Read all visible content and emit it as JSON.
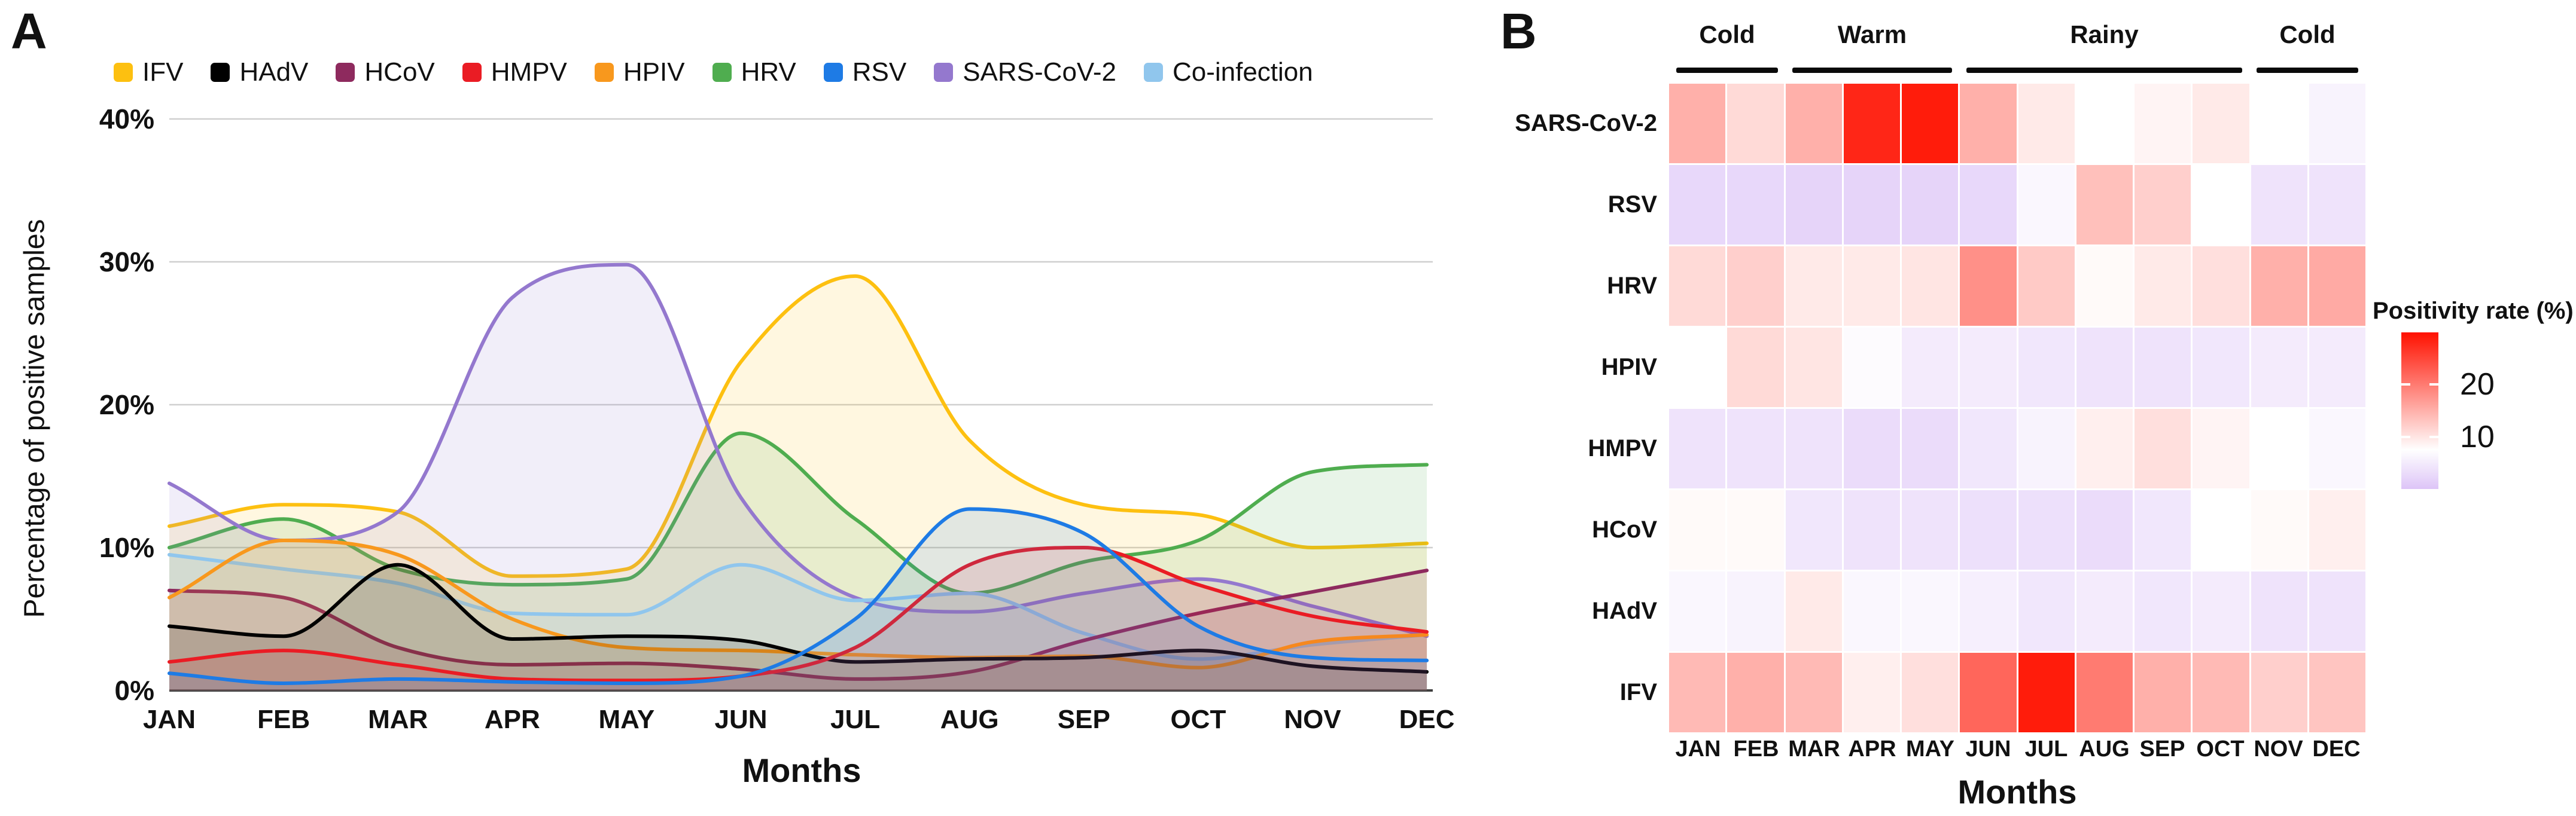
{
  "figure": {
    "panel_a": {
      "label": "A",
      "y_axis_title": "Percentage of positive samples",
      "x_axis_title": "Months"
    },
    "panel_b": {
      "label": "B",
      "x_axis_title": "Months",
      "legend_title": "Positivity rate (%)"
    }
  },
  "chart_data": [
    {
      "type": "area",
      "panel": "A",
      "xlabel": "Months",
      "ylabel": "Percentage of positive samples",
      "x": [
        "JAN",
        "FEB",
        "MAR",
        "APR",
        "MAY",
        "JUN",
        "JUL",
        "AUG",
        "SEP",
        "OCT",
        "NOV",
        "DEC"
      ],
      "ylim": [
        0,
        40
      ],
      "y_tick_labels": [
        "0%",
        "10%",
        "20%",
        "30%",
        "40%"
      ],
      "grid": "horizontal",
      "smoothing": "spline",
      "area_fill_opacity": 0.13,
      "series": [
        {
          "name": "IFV",
          "color": "#FDC010",
          "values": [
            11.5,
            13,
            12.5,
            8,
            8.5,
            23,
            29,
            17.5,
            13,
            12.3,
            10,
            10.3
          ]
        },
        {
          "name": "HAdV",
          "color": "#000000",
          "values": [
            4.5,
            3.8,
            8.8,
            3.6,
            3.8,
            3.5,
            2,
            2.2,
            2.3,
            2.8,
            1.7,
            1.3
          ]
        },
        {
          "name": "HCoV",
          "color": "#8E2A5E",
          "values": [
            7,
            6.5,
            3,
            1.8,
            1.9,
            1.5,
            0.8,
            1.3,
            3.5,
            5.4,
            6.9,
            8.4
          ]
        },
        {
          "name": "HMPV",
          "color": "#EA1C24",
          "values": [
            2,
            2.8,
            1.8,
            0.8,
            0.7,
            1,
            3,
            8.8,
            10,
            7.4,
            5.2,
            4.1
          ]
        },
        {
          "name": "HPIV",
          "color": "#F8981D",
          "values": [
            6.5,
            10.5,
            9.5,
            5,
            3,
            2.8,
            2.5,
            2.3,
            2.4,
            1.6,
            3.4,
            3.9
          ]
        },
        {
          "name": "HRV",
          "color": "#4FAD4F",
          "values": [
            10,
            12,
            8.5,
            7.4,
            7.8,
            18,
            12,
            6.8,
            9,
            10.5,
            15.3,
            15.8
          ]
        },
        {
          "name": "RSV",
          "color": "#1E7BE5",
          "values": [
            1.2,
            0.5,
            0.8,
            0.6,
            0.5,
            1,
            5,
            12.7,
            11,
            4.5,
            2.3,
            2.1
          ]
        },
        {
          "name": "SARS-CoV-2",
          "color": "#9478CE",
          "values": [
            14.5,
            10.5,
            12.5,
            27.5,
            29.8,
            13.5,
            6.5,
            5.5,
            6.8,
            7.8,
            5.9,
            3.8
          ]
        },
        {
          "name": "Co-infection",
          "color": "#90C6ED",
          "values": [
            9.5,
            8.5,
            7.5,
            5.4,
            5.3,
            8.8,
            6.3,
            6.8,
            4,
            2.2,
            3.2,
            3.9
          ]
        }
      ]
    },
    {
      "type": "heatmap",
      "panel": "B",
      "xlabel": "Months",
      "x": [
        "JAN",
        "FEB",
        "MAR",
        "APR",
        "MAY",
        "JUN",
        "JUL",
        "AUG",
        "SEP",
        "OCT",
        "NOV",
        "DEC"
      ],
      "rows": [
        "SARS-CoV-2",
        "RSV",
        "HRV",
        "HPIV",
        "HMPV",
        "HCoV",
        "HAdV",
        "IFV"
      ],
      "values": [
        [
          15,
          11,
          15,
          28,
          29,
          15,
          9.5,
          7.5,
          8.5,
          9.5,
          7.5,
          6
        ],
        [
          2.5,
          2.5,
          2,
          2,
          2,
          2.5,
          6.5,
          13.5,
          12,
          7.5,
          4,
          4
        ],
        [
          11,
          12,
          9.5,
          9.5,
          10,
          18,
          12.5,
          8,
          9.5,
          10.5,
          15,
          15.5
        ],
        [
          7.5,
          11,
          10,
          7,
          5,
          5,
          4.5,
          4,
          4,
          4.5,
          5,
          5
        ],
        [
          4,
          4,
          4,
          3,
          3,
          4.5,
          6,
          9,
          10.5,
          8.5,
          7.5,
          6.5
        ],
        [
          8,
          8,
          4.5,
          4,
          4,
          3.5,
          3.5,
          3,
          4.5,
          7.5,
          8,
          9
        ],
        [
          6.5,
          6,
          9.5,
          6.5,
          6.5,
          5.5,
          4.5,
          5,
          4.5,
          5,
          4,
          4
        ],
        [
          14,
          15,
          14,
          9,
          10.5,
          22,
          29,
          20,
          15,
          14,
          12,
          13
        ]
      ],
      "season_groups": [
        {
          "label": "Cold",
          "months": [
            "JAN",
            "FEB"
          ]
        },
        {
          "label": "Warm",
          "months": [
            "MAR",
            "APR",
            "MAY"
          ]
        },
        {
          "label": "Rainy",
          "months": [
            "JUN",
            "JUL",
            "AUG",
            "SEP",
            "OCT"
          ]
        },
        {
          "label": "Cold",
          "months": [
            "NOV",
            "DEC"
          ]
        }
      ],
      "colorbar": {
        "title": "Positivity rate (%)",
        "ticks": [
          20,
          10
        ],
        "domain": [
          0,
          30
        ],
        "white_point": 7.5,
        "high_color": "#FF1100",
        "low_color": "#DDC4F7"
      }
    }
  ]
}
